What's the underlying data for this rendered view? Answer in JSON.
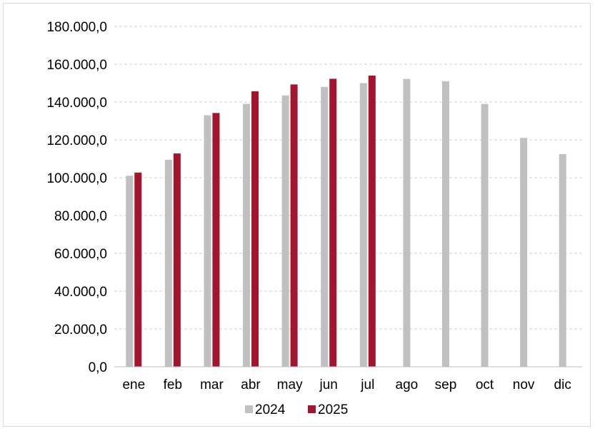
{
  "chart_data": {
    "type": "bar",
    "categories": [
      "ene",
      "feb",
      "mar",
      "abr",
      "may",
      "jun",
      "jul",
      "ago",
      "sep",
      "oct",
      "nov",
      "dic"
    ],
    "series": [
      {
        "name": "2024",
        "color": "#c0c0c0",
        "values": [
          101000,
          109500,
          133000,
          139000,
          143500,
          148000,
          150000,
          152200,
          151000,
          139000,
          121000,
          112500
        ]
      },
      {
        "name": "2025",
        "color": "#a2152c",
        "values": [
          102700,
          112800,
          134200,
          145700,
          149300,
          152300,
          154000,
          null,
          null,
          null,
          null,
          null
        ]
      }
    ],
    "ylim": [
      0,
      180000
    ],
    "yticks": [
      {
        "value": 0,
        "label": "0,0"
      },
      {
        "value": 20000,
        "label": "20.000,0"
      },
      {
        "value": 40000,
        "label": "40.000,0"
      },
      {
        "value": 60000,
        "label": "60.000,0"
      },
      {
        "value": 80000,
        "label": "80.000,0"
      },
      {
        "value": 100000,
        "label": "100.000,0"
      },
      {
        "value": 120000,
        "label": "120.000,0"
      },
      {
        "value": 140000,
        "label": "140.000,0"
      },
      {
        "value": 160000,
        "label": "160.000,0"
      },
      {
        "value": 180000,
        "label": "180.000,0"
      }
    ],
    "grid": true,
    "legend_position": "bottom"
  }
}
